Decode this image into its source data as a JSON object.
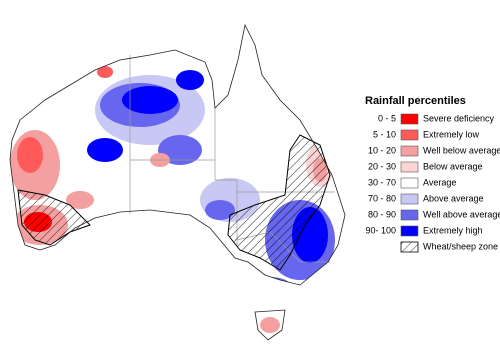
{
  "legend": {
    "title": "Rainfall percentiles",
    "items": [
      {
        "range": "0 - 5",
        "label": "Severe deficiency",
        "color": "#ff0000"
      },
      {
        "range": "5 - 10",
        "label": "Extremely low",
        "color": "#ff5a5a"
      },
      {
        "range": "10 - 20",
        "label": "Well below average",
        "color": "#f4a0a0"
      },
      {
        "range": "20 - 30",
        "label": "Below average",
        "color": "#fcd4d4"
      },
      {
        "range": "30 - 70",
        "label": "Average",
        "color": "#ffffff"
      },
      {
        "range": "70 - 80",
        "label": "Above average",
        "color": "#c8c8f4"
      },
      {
        "range": "80 - 90",
        "label": "Well above average",
        "color": "#6666ee"
      },
      {
        "range": "90- 100",
        "label": "Extremely high",
        "color": "#0000ff"
      }
    ],
    "zone_label": "Wheat/sheep zone"
  }
}
